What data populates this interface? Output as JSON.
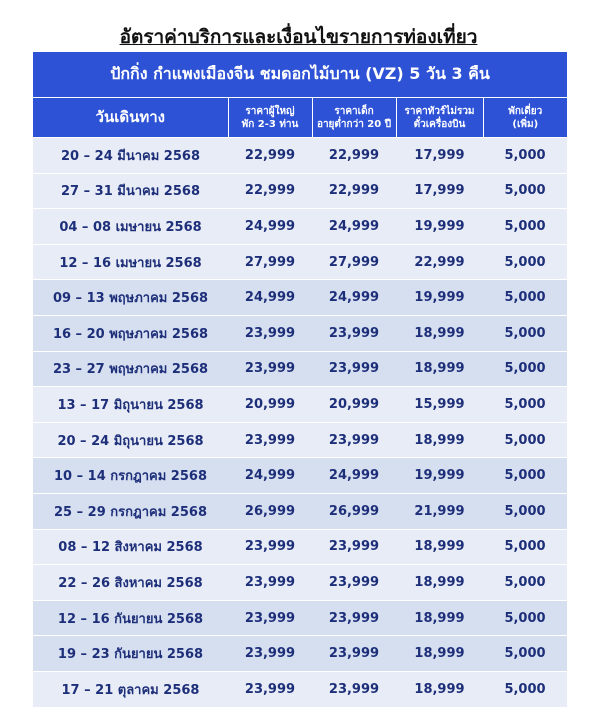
{
  "title": "อัตราค่าบริการและเงื่อนไขรายการท่องเที่ยว",
  "table": {
    "subtitle": "ปักกิ่ง กำแพงเมืองจีน ชมดอกไม้บาน (VZ) 5 วัน 3 คืน",
    "headers": [
      [
        "วันเดินทาง"
      ],
      [
        "ราคาผู้ใหญ่",
        "พัก 2-3 ท่าน"
      ],
      [
        "ราคาเด็ก",
        "อายุต่ำกว่า 20 ปี"
      ],
      [
        "ราคาทัวร์ไม่รวม",
        "ตั๋วเครื่องบิน"
      ],
      [
        "พักเดี่ยว",
        "(เพิ่ม)"
      ]
    ],
    "rows": [
      [
        "20 – 24 มีนาคม 2568",
        "22,999",
        "22,999",
        "17,999",
        "5,000"
      ],
      [
        "27 – 31 มีนาคม 2568",
        "22,999",
        "22,999",
        "17,999",
        "5,000"
      ],
      [
        "04 – 08 เมษายน 2568",
        "24,999",
        "24,999",
        "19,999",
        "5,000"
      ],
      [
        "12 – 16 เมษายน 2568",
        "27,999",
        "27,999",
        "22,999",
        "5,000"
      ],
      [
        "09 – 13 พฤษภาคม 2568",
        "24,999",
        "24,999",
        "19,999",
        "5,000"
      ],
      [
        "16 – 20 พฤษภาคม 2568",
        "23,999",
        "23,999",
        "18,999",
        "5,000"
      ],
      [
        "23 – 27 พฤษภาคม 2568",
        "23,999",
        "23,999",
        "18,999",
        "5,000"
      ],
      [
        "13 – 17 มิถุนายน 2568",
        "20,999",
        "20,999",
        "15,999",
        "5,000"
      ],
      [
        "20 – 24 มิถุนายน 2568",
        "23,999",
        "23,999",
        "18,999",
        "5,000"
      ],
      [
        "10 – 14 กรกฎาคม 2568",
        "24,999",
        "24,999",
        "19,999",
        "5,000"
      ],
      [
        "25 – 29 กรกฎาคม 2568",
        "26,999",
        "26,999",
        "21,999",
        "5,000"
      ],
      [
        "08 – 12 สิงหาคม 2568",
        "23,999",
        "23,999",
        "18,999",
        "5,000"
      ],
      [
        "22 – 26 สิงหาคม 2568",
        "23,999",
        "23,999",
        "18,999",
        "5,000"
      ],
      [
        "12 – 16 กันยายน 2568",
        "23,999",
        "23,999",
        "18,999",
        "5,000"
      ],
      [
        "19 – 23 กันยายน 2568",
        "23,999",
        "23,999",
        "18,999",
        "5,000"
      ],
      [
        "17 – 21 ตุลาคม 2568",
        "23,999",
        "23,999",
        "18,999",
        "5,000"
      ]
    ]
  }
}
